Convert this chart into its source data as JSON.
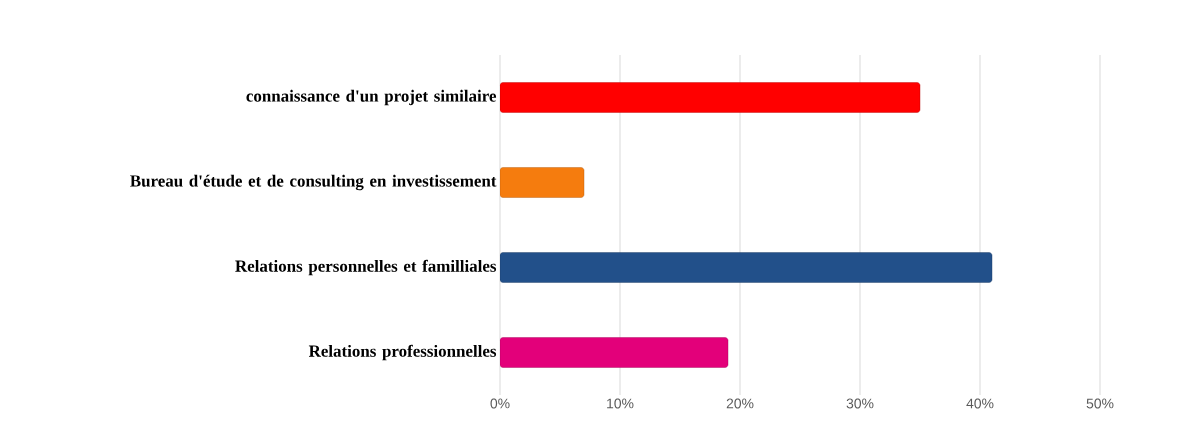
{
  "chart_data": {
    "type": "bar",
    "orientation": "horizontal",
    "categories": [
      "connaissance d'un projet similaire",
      "Bureau d'étude et de consulting en investissement",
      "Relations personnelles et familliales",
      "Relations professionnelles"
    ],
    "values": [
      35,
      7,
      41,
      19
    ],
    "colors": [
      "#ff0000",
      "#f57c0e",
      "#22508a",
      "#e3007a"
    ],
    "xlim": [
      0,
      50
    ],
    "xticks": [
      {
        "value": 0,
        "label": "0%"
      },
      {
        "value": 10,
        "label": "10%"
      },
      {
        "value": 20,
        "label": "20%"
      },
      {
        "value": 30,
        "label": "30%"
      },
      {
        "value": 40,
        "label": "40%"
      },
      {
        "value": 50,
        "label": "50%"
      }
    ],
    "grid": "x"
  }
}
